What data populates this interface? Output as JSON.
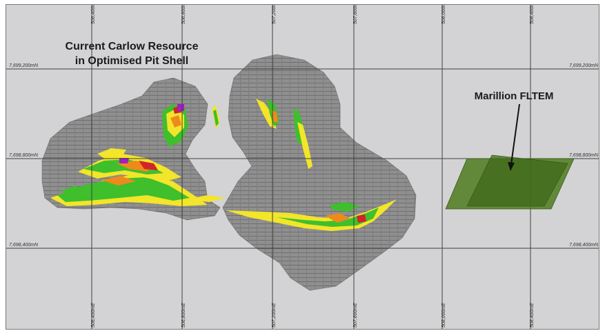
{
  "title": {
    "line1": "Current Carlow Resource",
    "line2": "in Optimised Pit Shell"
  },
  "annotation": {
    "label": "Marillion FLTEM"
  },
  "easting_labels": [
    "506,400mE",
    "506,800mE",
    "507,200mE",
    "507,600mE",
    "508,000mE",
    "508,400mE"
  ],
  "northing_labels": [
    "7,699,200mN",
    "7,698,800mN",
    "7,698,400mN"
  ],
  "colors": {
    "background": "#d3d3d5",
    "pit_shell": "#8e8e8e",
    "grade_yellow": "#f2e52a",
    "grade_green": "#3fbf2c",
    "grade_orange": "#ee8a1c",
    "grade_red": "#d4232a",
    "grade_magenta": "#a21fc0",
    "fltem_plate": "#4e7a1f"
  }
}
